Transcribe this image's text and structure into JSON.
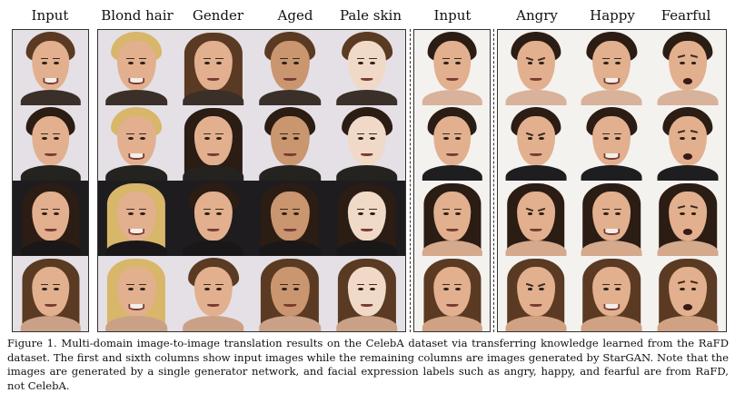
{
  "celeba_section": {
    "headers": [
      "Input",
      "Blond hair",
      "Gender",
      "Aged",
      "Pale skin"
    ]
  },
  "rafd_section": {
    "headers": [
      "Input",
      "Angry",
      "Happy",
      "Fearful"
    ]
  },
  "caption": "Figure 1. Multi-domain image-to-image translation results on the CelebA dataset via transferring knowledge learned from the RaFD dataset. The first and sixth columns show input images while the remaining columns are images generated by StarGAN. Note that the images are generated by a single generator network, and facial expression labels such as angry, happy, and fearful are from RaFD, not CelebA.",
  "palette": {
    "skin": "#e2b08e",
    "skin_pale": "#f1d9c8",
    "skin_aged": "#c9966f",
    "hair_dark": "#2b1c14",
    "hair_brown": "#5a3a22",
    "hair_blond": "#d8b66a",
    "bg_press": "#e4e0e6",
    "bg_white": "#f4f2ef",
    "bg_dark": "#1e1c1f"
  },
  "celeba_rows": [
    {
      "hair": "brown",
      "long": false,
      "bg": "press",
      "neck": "#3b2f2a"
    },
    {
      "hair": "dark",
      "long": false,
      "bg": "press",
      "neck": "#25231f"
    },
    {
      "hair": "dark",
      "long": true,
      "bg": "dark",
      "neck": "#1a1718"
    },
    {
      "hair": "brown",
      "long": true,
      "bg": "press",
      "neck": "#caa187"
    }
  ],
  "celeba_columns": [
    {
      "mode": "input"
    },
    {
      "mode": "blond"
    },
    {
      "mode": "gender"
    },
    {
      "mode": "aged"
    },
    {
      "mode": "pale"
    }
  ],
  "rafd_rows": [
    {
      "hair": "dark",
      "long": false,
      "bg": "white",
      "neck": "#d8b29a"
    },
    {
      "hair": "dark",
      "long": false,
      "bg": "white",
      "neck": "#1e1d1f"
    },
    {
      "hair": "dark",
      "long": true,
      "bg": "white",
      "neck": "#d4a98c"
    },
    {
      "hair": "brown",
      "long": true,
      "bg": "white",
      "neck": "#d0a283"
    }
  ],
  "rafd_columns": [
    {
      "expr": "input"
    },
    {
      "expr": "angry"
    },
    {
      "expr": "happy"
    },
    {
      "expr": "fearful"
    }
  ]
}
